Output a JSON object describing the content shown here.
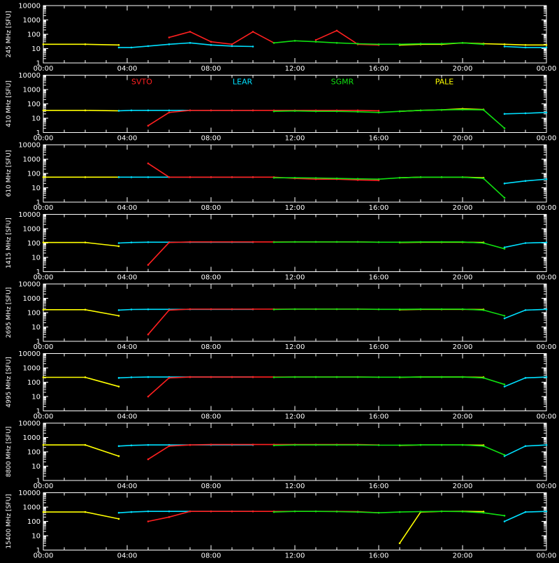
{
  "chart_data": {
    "type": "line",
    "y_scale": "log",
    "ylim": [
      1,
      10000
    ],
    "xlim": [
      "00:00",
      "24:00"
    ],
    "y_tick_labels": [
      "1",
      "10",
      "100",
      "1000",
      "10000"
    ],
    "x_tick_labels": [
      "00:00",
      "04:00",
      "08:00",
      "12:00",
      "16:00",
      "20:00",
      "00:00"
    ],
    "ylabel_unit": "[SFU]",
    "grid": false,
    "legend_placement": "top, inside second panel",
    "colors": {
      "background": "#000000",
      "axes": "#ffffff",
      "SVTO": "#ff2020",
      "LEAR": "#00e0ff",
      "SGMR": "#10e010",
      "PALE": "#ffff00"
    },
    "stations": [
      "SVTO",
      "LEAR",
      "SGMR",
      "PALE"
    ],
    "x_hours": [
      0,
      2,
      3.6,
      4.2,
      5.0,
      6.0,
      7.0,
      8.0,
      9.0,
      10.0,
      11.0,
      12.0,
      13.0,
      14.0,
      15.0,
      16.0,
      17.0,
      18.0,
      19.0,
      20.0,
      21.0,
      22.0,
      23.0,
      24.0
    ],
    "panels": [
      {
        "label": "245 MHz",
        "series": [
          {
            "name": "PALE",
            "values": [
              20,
              20,
              18,
              null,
              null,
              null,
              null,
              null,
              null,
              null,
              null,
              null,
              null,
              null,
              null,
              null,
              18,
              20,
              20,
              25,
              22,
              20,
              18,
              18
            ]
          },
          {
            "name": "LEAR",
            "values": [
              null,
              null,
              12,
              12,
              15,
              20,
              25,
              18,
              15,
              14,
              null,
              null,
              null,
              null,
              null,
              null,
              null,
              null,
              null,
              null,
              null,
              14,
              12,
              12
            ]
          },
          {
            "name": "SVTO",
            "values": [
              null,
              null,
              null,
              null,
              null,
              60,
              150,
              30,
              20,
              150,
              25,
              null,
              40,
              180,
              20,
              18,
              null,
              null,
              null,
              null,
              null,
              null,
              null,
              null
            ]
          },
          {
            "name": "SGMR",
            "values": [
              null,
              null,
              null,
              null,
              null,
              null,
              null,
              null,
              null,
              null,
              25,
              35,
              30,
              25,
              22,
              20,
              20,
              22,
              22,
              25,
              20,
              null,
              null,
              null
            ]
          }
        ]
      },
      {
        "label": "410 MHz",
        "series": [
          {
            "name": "PALE",
            "values": [
              35,
              35,
              33,
              null,
              null,
              null,
              null,
              null,
              null,
              null,
              null,
              null,
              null,
              null,
              null,
              null,
              30,
              35,
              38,
              45,
              40,
              null,
              null,
              null
            ]
          },
          {
            "name": "LEAR",
            "values": [
              null,
              null,
              33,
              35,
              35,
              35,
              35,
              35,
              35,
              35,
              null,
              null,
              null,
              null,
              null,
              null,
              null,
              null,
              null,
              null,
              null,
              20,
              22,
              25
            ]
          },
          {
            "name": "SVTO",
            "values": [
              null,
              null,
              null,
              null,
              3,
              25,
              35,
              35,
              35,
              35,
              35,
              35,
              35,
              35,
              35,
              33,
              null,
              null,
              null,
              null,
              null,
              null,
              null,
              null
            ]
          },
          {
            "name": "SGMR",
            "values": [
              null,
              null,
              null,
              null,
              null,
              null,
              null,
              null,
              null,
              null,
              30,
              32,
              30,
              30,
              28,
              25,
              30,
              35,
              38,
              40,
              38,
              2,
              null,
              null
            ]
          }
        ]
      },
      {
        "label": "610 MHz",
        "series": [
          {
            "name": "PALE",
            "values": [
              55,
              55,
              55,
              null,
              null,
              null,
              null,
              null,
              null,
              null,
              null,
              null,
              null,
              null,
              null,
              null,
              50,
              55,
              55,
              55,
              50,
              null,
              null,
              null
            ]
          },
          {
            "name": "LEAR",
            "values": [
              null,
              null,
              55,
              55,
              55,
              55,
              55,
              55,
              55,
              55,
              null,
              null,
              null,
              null,
              null,
              null,
              null,
              null,
              null,
              null,
              null,
              20,
              30,
              40
            ]
          },
          {
            "name": "SVTO",
            "values": [
              null,
              null,
              null,
              null,
              500,
              55,
              55,
              55,
              55,
              55,
              55,
              45,
              40,
              40,
              35,
              33,
              null,
              null,
              null,
              null,
              null,
              null,
              null,
              null
            ]
          },
          {
            "name": "SGMR",
            "values": [
              null,
              null,
              null,
              null,
              null,
              null,
              null,
              null,
              null,
              null,
              50,
              50,
              48,
              45,
              42,
              40,
              50,
              55,
              55,
              55,
              45,
              2,
              null,
              null
            ]
          }
        ]
      },
      {
        "label": "1415 MHz",
        "series": [
          {
            "name": "PALE",
            "values": [
              110,
              110,
              60,
              null,
              null,
              null,
              null,
              null,
              null,
              null,
              null,
              null,
              null,
              null,
              null,
              null,
              110,
              115,
              115,
              115,
              110,
              null,
              null,
              null
            ]
          },
          {
            "name": "LEAR",
            "values": [
              null,
              null,
              100,
              110,
              115,
              115,
              115,
              115,
              115,
              115,
              null,
              null,
              null,
              null,
              null,
              null,
              null,
              null,
              null,
              null,
              null,
              50,
              100,
              110
            ]
          },
          {
            "name": "SVTO",
            "values": [
              null,
              null,
              null,
              null,
              3,
              110,
              120,
              120,
              120,
              120,
              120,
              120,
              120,
              120,
              120,
              115,
              null,
              null,
              null,
              null,
              null,
              null,
              null,
              null
            ]
          },
          {
            "name": "SGMR",
            "values": [
              null,
              null,
              null,
              null,
              null,
              null,
              null,
              null,
              null,
              null,
              115,
              120,
              120,
              120,
              120,
              115,
              115,
              120,
              120,
              120,
              100,
              40,
              null,
              null
            ]
          }
        ]
      },
      {
        "label": "2695 MHz",
        "series": [
          {
            "name": "PALE",
            "values": [
              160,
              160,
              60,
              null,
              null,
              null,
              null,
              null,
              null,
              null,
              null,
              null,
              null,
              null,
              null,
              null,
              160,
              170,
              170,
              170,
              165,
              null,
              null,
              null
            ]
          },
          {
            "name": "LEAR",
            "values": [
              null,
              null,
              150,
              165,
              170,
              170,
              170,
              170,
              170,
              170,
              null,
              null,
              null,
              null,
              null,
              null,
              null,
              null,
              null,
              null,
              null,
              40,
              150,
              170
            ]
          },
          {
            "name": "SVTO",
            "values": [
              null,
              null,
              null,
              null,
              3,
              150,
              175,
              175,
              175,
              175,
              175,
              175,
              175,
              175,
              175,
              170,
              null,
              null,
              null,
              null,
              null,
              null,
              null,
              null
            ]
          },
          {
            "name": "SGMR",
            "values": [
              null,
              null,
              null,
              null,
              null,
              null,
              null,
              null,
              null,
              null,
              165,
              175,
              175,
              175,
              175,
              170,
              170,
              175,
              175,
              175,
              150,
              60,
              null,
              null
            ]
          }
        ]
      },
      {
        "label": "4995 MHz",
        "series": [
          {
            "name": "PALE",
            "values": [
              220,
              220,
              50,
              null,
              null,
              null,
              null,
              null,
              null,
              null,
              null,
              null,
              null,
              null,
              null,
              null,
              220,
              230,
              230,
              230,
              220,
              null,
              null,
              null
            ]
          },
          {
            "name": "LEAR",
            "values": [
              null,
              null,
              200,
              220,
              230,
              230,
              230,
              230,
              230,
              230,
              null,
              null,
              null,
              null,
              null,
              null,
              null,
              null,
              null,
              null,
              null,
              50,
              200,
              230
            ]
          },
          {
            "name": "SVTO",
            "values": [
              null,
              null,
              null,
              null,
              10,
              200,
              230,
              230,
              230,
              230,
              230,
              230,
              230,
              230,
              230,
              225,
              null,
              null,
              null,
              null,
              null,
              null,
              null,
              null
            ]
          },
          {
            "name": "SGMR",
            "values": [
              null,
              null,
              null,
              null,
              null,
              null,
              null,
              null,
              null,
              null,
              220,
              230,
              230,
              230,
              230,
              225,
              225,
              230,
              230,
              230,
              200,
              70,
              null,
              null
            ]
          }
        ]
      },
      {
        "label": "8800 MHz",
        "series": [
          {
            "name": "PALE",
            "values": [
              300,
              300,
              50,
              null,
              null,
              null,
              null,
              null,
              null,
              null,
              null,
              null,
              null,
              null,
              null,
              null,
              280,
              300,
              300,
              300,
              290,
              null,
              null,
              null
            ]
          },
          {
            "name": "LEAR",
            "values": [
              null,
              null,
              250,
              280,
              300,
              300,
              300,
              300,
              300,
              300,
              null,
              null,
              null,
              null,
              null,
              null,
              null,
              null,
              null,
              null,
              null,
              50,
              250,
              300
            ]
          },
          {
            "name": "SVTO",
            "values": [
              null,
              null,
              null,
              null,
              30,
              250,
              300,
              320,
              320,
              320,
              320,
              320,
              320,
              320,
              320,
              300,
              null,
              null,
              null,
              null,
              null,
              null,
              null,
              null
            ]
          },
          {
            "name": "SGMR",
            "values": [
              null,
              null,
              null,
              null,
              null,
              null,
              null,
              null,
              null,
              null,
              280,
              300,
              300,
              300,
              300,
              290,
              290,
              300,
              300,
              300,
              250,
              60,
              null,
              null
            ]
          }
        ]
      },
      {
        "label": "15400 MHz",
        "series": [
          {
            "name": "PALE",
            "values": [
              450,
              450,
              150,
              null,
              null,
              null,
              null,
              null,
              null,
              null,
              null,
              null,
              null,
              null,
              null,
              null,
              3,
              450,
              500,
              500,
              480,
              null,
              null,
              null
            ]
          },
          {
            "name": "LEAR",
            "values": [
              null,
              null,
              400,
              450,
              500,
              500,
              500,
              500,
              500,
              500,
              null,
              null,
              null,
              null,
              null,
              null,
              null,
              null,
              null,
              null,
              null,
              100,
              450,
              500
            ]
          },
          {
            "name": "SVTO",
            "values": [
              null,
              null,
              null,
              null,
              100,
              200,
              500,
              500,
              500,
              500,
              500,
              500,
              500,
              500,
              480,
              400,
              null,
              null,
              null,
              null,
              null,
              null,
              null,
              null
            ]
          },
          {
            "name": "SGMR",
            "values": [
              null,
              null,
              null,
              null,
              null,
              null,
              null,
              null,
              null,
              null,
              450,
              500,
              500,
              480,
              450,
              400,
              450,
              480,
              500,
              480,
              400,
              250,
              null,
              null
            ]
          }
        ]
      }
    ]
  }
}
